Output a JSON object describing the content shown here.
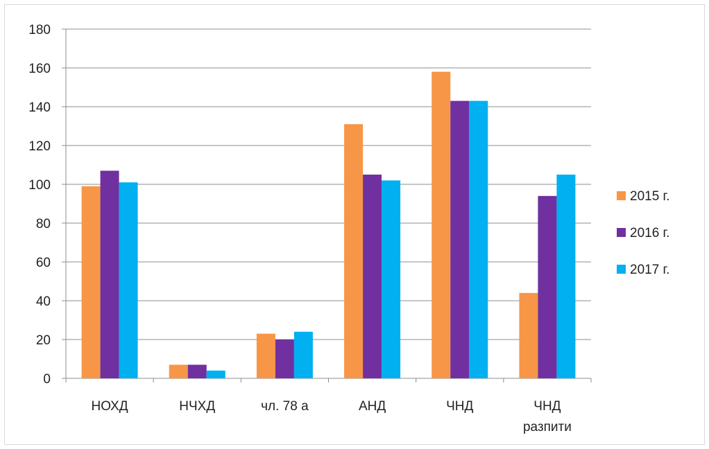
{
  "chart_data": {
    "type": "bar",
    "title": "",
    "xlabel": "",
    "ylabel": "",
    "ylim": [
      0,
      180
    ],
    "yticks": [
      0,
      20,
      40,
      60,
      80,
      100,
      120,
      140,
      160,
      180
    ],
    "grid": true,
    "legend_position": "right",
    "categories": [
      [
        "НОХД"
      ],
      [
        "НЧХД"
      ],
      [
        "чл. 78 а"
      ],
      [
        "АНД"
      ],
      [
        "ЧНД"
      ],
      [
        "ЧНД",
        "разпити"
      ]
    ],
    "series": [
      {
        "name": "2015 г.",
        "color": "#f79646",
        "values": [
          99,
          7,
          23,
          131,
          158,
          44
        ]
      },
      {
        "name": "2016 г.",
        "color": "#7030a0",
        "values": [
          107,
          7,
          20,
          105,
          143,
          94
        ]
      },
      {
        "name": "2017 г.",
        "color": "#00b0f0",
        "values": [
          101,
          4,
          24,
          102,
          143,
          105
        ]
      }
    ]
  }
}
